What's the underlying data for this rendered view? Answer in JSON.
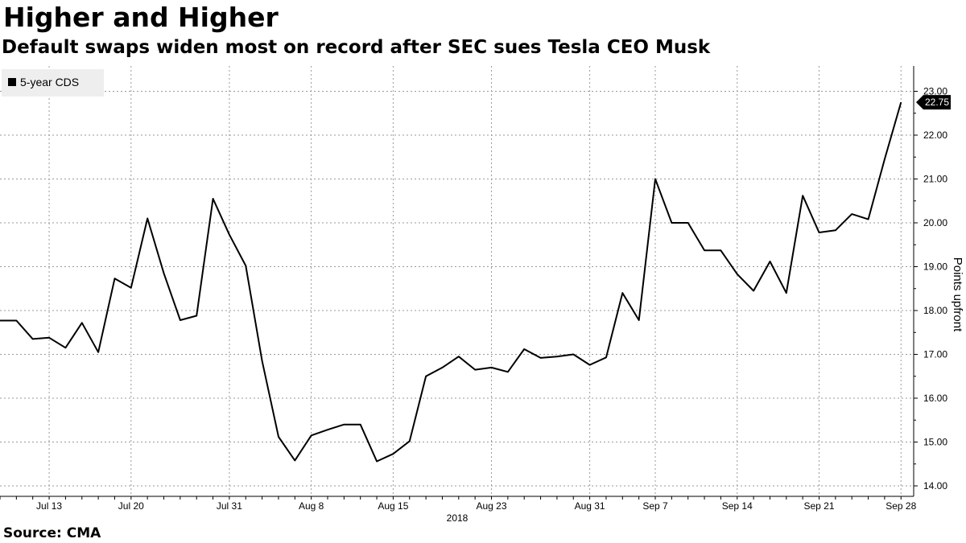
{
  "header": {
    "title": "Higher and Higher",
    "subtitle": "Default swaps widen most on record after SEC sues Tesla CEO Musk"
  },
  "footer": {
    "source": "Source: CMA"
  },
  "colors": {
    "line": "#000000",
    "grid": "#9a9a9a",
    "legend_bg": "#eeeeee",
    "flag_bg": "#000000"
  },
  "chart_data": {
    "type": "line",
    "title": "Higher and Higher",
    "subtitle": "Default swaps widen most on record after SEC sues Tesla CEO Musk",
    "xlabel": "2018",
    "ylabel": "Points upfront",
    "ylim": [
      14,
      23.3
    ],
    "yticks": [
      14,
      15,
      16,
      17,
      18,
      19,
      20,
      21,
      22,
      23
    ],
    "ytick_labels": [
      "14.00",
      "15.00",
      "16.00",
      "17.00",
      "18.00",
      "19.00",
      "20.00",
      "21.00",
      "22.00",
      "23.00"
    ],
    "xticks": [
      {
        "label": "Jul 13",
        "index": 3
      },
      {
        "label": "Jul 20",
        "index": 8
      },
      {
        "label": "Jul 31",
        "index": 14
      },
      {
        "label": "Aug 8",
        "index": 19
      },
      {
        "label": "Aug 15",
        "index": 24
      },
      {
        "label": "Aug 23",
        "index": 30
      },
      {
        "label": "Aug 31",
        "index": 36
      },
      {
        "label": "Sep 7",
        "index": 40
      },
      {
        "label": "Sep 14",
        "index": 45
      },
      {
        "label": "Sep 21",
        "index": 50
      },
      {
        "label": "Sep 28",
        "index": 55
      }
    ],
    "grid": true,
    "legend": {
      "position": "top-left",
      "entries": [
        "5-year CDS"
      ]
    },
    "last_value_label": "22.75",
    "series": [
      {
        "name": "5-year CDS",
        "values": [
          17.77,
          17.77,
          17.35,
          17.38,
          17.15,
          17.72,
          17.05,
          18.73,
          18.52,
          20.1,
          18.85,
          17.78,
          17.88,
          20.55,
          19.73,
          19.02,
          16.85,
          15.12,
          14.58,
          15.15,
          15.28,
          15.4,
          15.4,
          14.56,
          14.73,
          15.02,
          16.5,
          16.7,
          16.95,
          16.65,
          16.7,
          16.6,
          17.12,
          16.92,
          16.95,
          17.0,
          16.76,
          16.93,
          18.4,
          17.78,
          21.0,
          20.0,
          20.0,
          19.37,
          19.37,
          18.83,
          18.45,
          19.12,
          18.4,
          20.62,
          19.78,
          19.83,
          20.2,
          20.08,
          21.45,
          22.75
        ]
      }
    ]
  }
}
